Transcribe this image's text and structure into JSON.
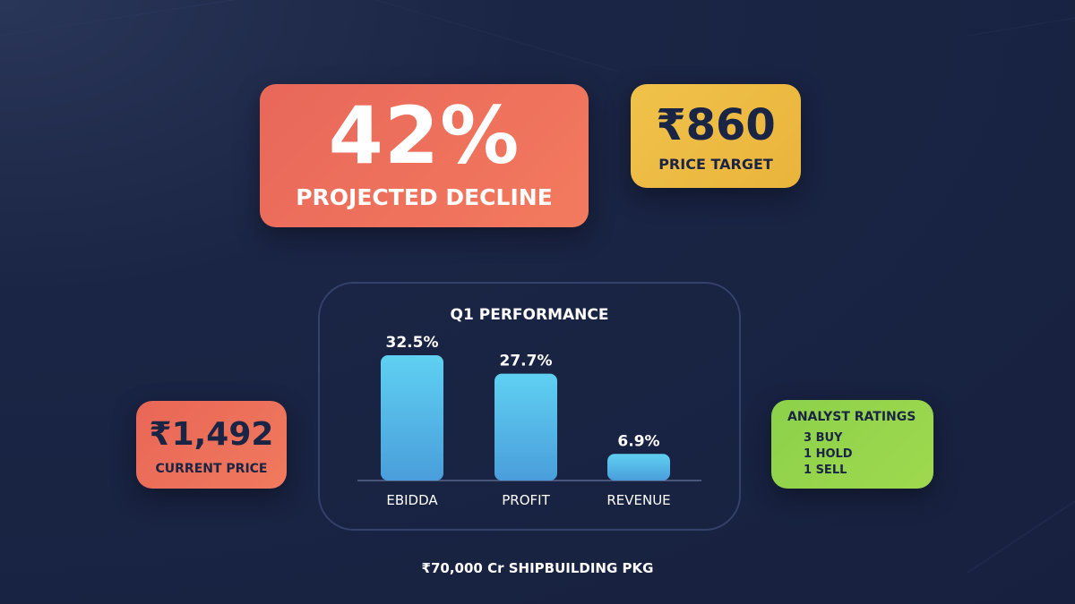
{
  "decline": {
    "value": "42%",
    "label": "PROJECTED DECLINE"
  },
  "target": {
    "value": "₹860",
    "label": "PRICE TARGET"
  },
  "current": {
    "value": "₹1,492",
    "label": "CURRENT PRICE"
  },
  "ratings": {
    "title": "ANALYST RATINGS",
    "items": [
      "3 BUY",
      "1 HOLD",
      "1 SELL"
    ]
  },
  "footer": "₹70,000 Cr SHIPBUILDING PKG",
  "colors": {
    "background": "#17213f",
    "decline_card": "#ee7159",
    "target_card": "#eebc44",
    "price_card": "#ec6e5a",
    "ratings_card": "#96d44c",
    "bar_top": "#5fd0f2",
    "bar_bottom": "#4a9edb"
  },
  "chart_data": {
    "type": "bar",
    "title": "Q1 PERFORMANCE",
    "categories": [
      "EBIDDA",
      "PROFIT",
      "REVENUE"
    ],
    "values": [
      32.5,
      27.7,
      6.9
    ],
    "value_labels": [
      "32.5%",
      "27.7%",
      "6.9%"
    ],
    "grid": false
  }
}
